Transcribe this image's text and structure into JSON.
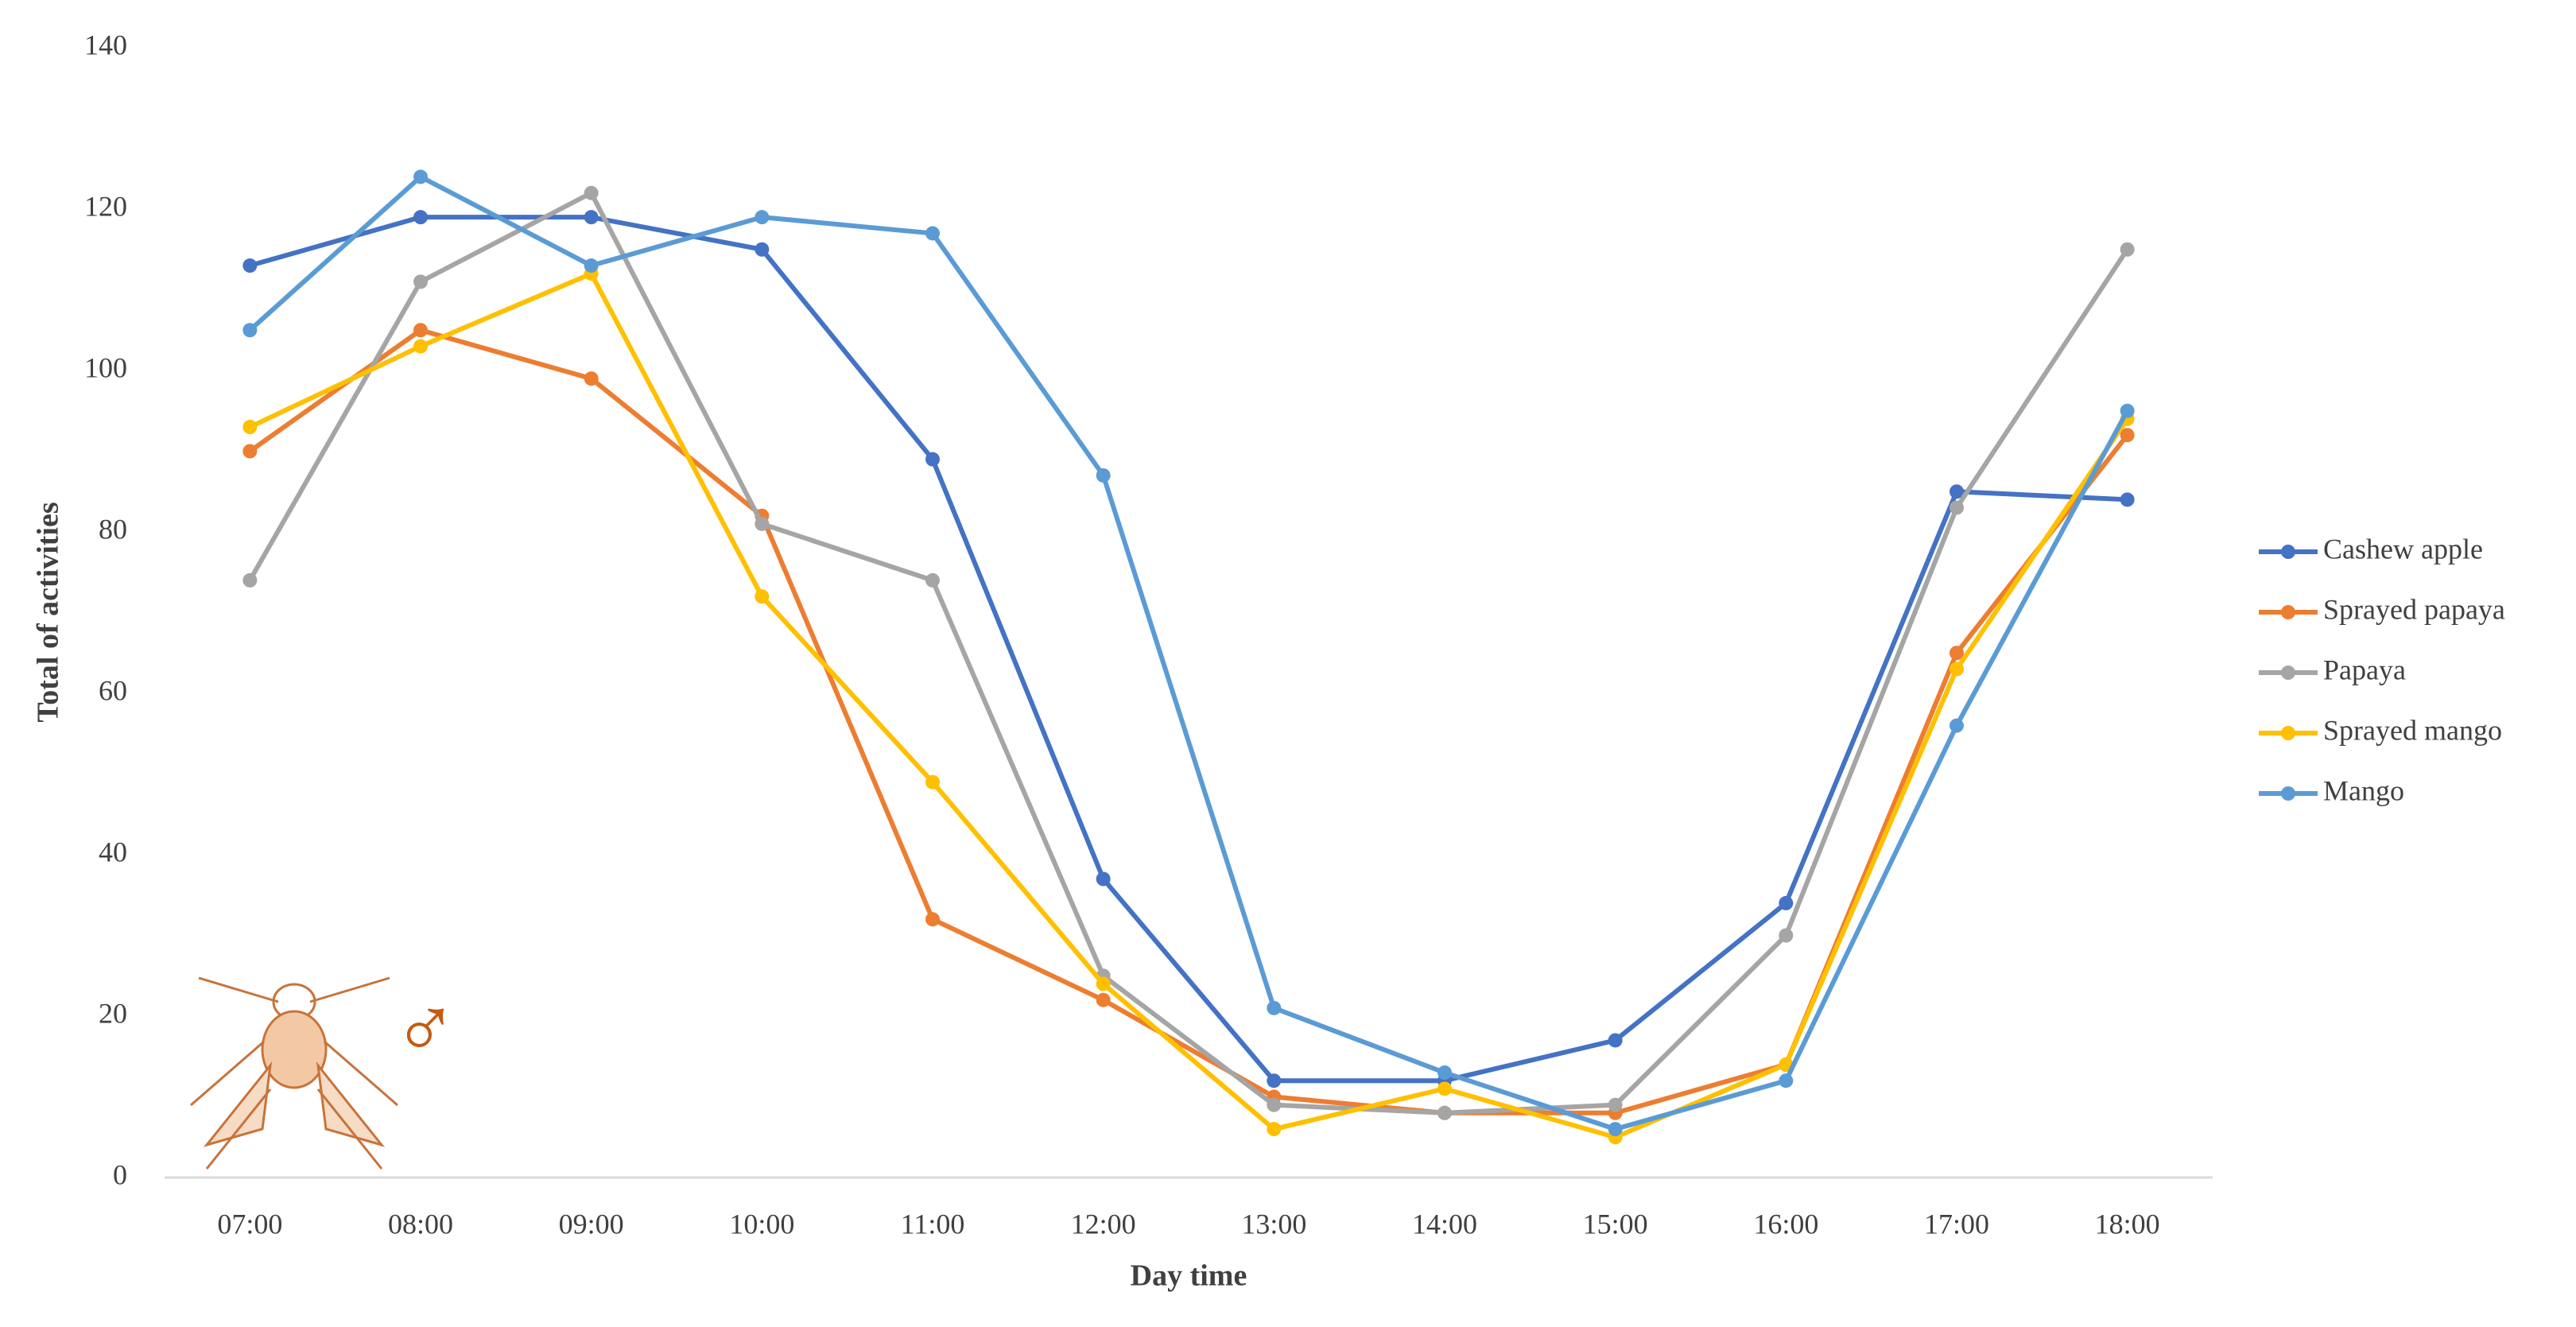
{
  "chart_data": {
    "type": "line",
    "xlabel": "Day time",
    "ylabel": "Total of activities",
    "annotation": "♂",
    "categories": [
      "07:00",
      "08:00",
      "09:00",
      "10:00",
      "11:00",
      "12:00",
      "13:00",
      "14:00",
      "15:00",
      "16:00",
      "17:00",
      "18:00"
    ],
    "series": [
      {
        "name": "Cashew apple",
        "color": "#4472c4",
        "values": [
          113,
          119,
          119,
          115,
          89,
          37,
          12,
          12,
          17,
          34,
          85,
          84
        ]
      },
      {
        "name": "Sprayed papaya",
        "color": "#ed7d31",
        "values": [
          90,
          105,
          99,
          82,
          32,
          22,
          10,
          8,
          8,
          14,
          65,
          92
        ]
      },
      {
        "name": "Papaya",
        "color": "#a5a5a5",
        "values": [
          74,
          111,
          122,
          81,
          74,
          25,
          9,
          8,
          9,
          30,
          83,
          115
        ]
      },
      {
        "name": "Sprayed mango",
        "color": "#ffc000",
        "values": [
          93,
          103,
          112,
          72,
          49,
          24,
          6,
          11,
          5,
          14,
          63,
          94
        ]
      },
      {
        "name": "Mango",
        "color": "#5b9bd5",
        "values": [
          105,
          124,
          113,
          119,
          117,
          87,
          21,
          13,
          6,
          12,
          56,
          95
        ]
      }
    ],
    "ylim": [
      0,
      140
    ],
    "yticks": [
      0,
      20,
      40,
      60,
      80,
      100,
      120,
      140
    ],
    "grid": false,
    "legend": "right"
  }
}
